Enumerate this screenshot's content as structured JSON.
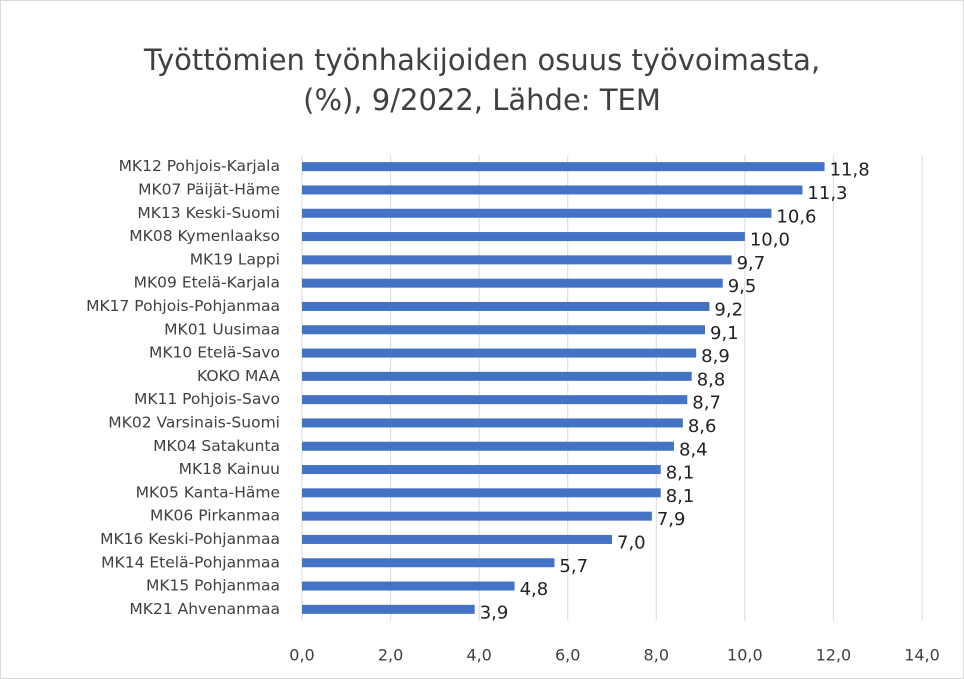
{
  "chart_data": {
    "type": "bar",
    "orientation": "horizontal",
    "title": [
      "Työttömien työnhakijoiden osuus työvoimasta,",
      "(%), 9/2022, Lähde: TEM"
    ],
    "categories": [
      "MK12 Pohjois-Karjala",
      "MK07 Päijät-Häme",
      "MK13 Keski-Suomi",
      "MK08 Kymenlaakso",
      "MK19 Lappi",
      "MK09 Etelä-Karjala",
      "MK17 Pohjois-Pohjanmaa",
      "MK01 Uusimaa",
      "MK10 Etelä-Savo",
      "KOKO MAA",
      "MK11 Pohjois-Savo",
      "MK02 Varsinais-Suomi",
      "MK04 Satakunta",
      "MK18 Kainuu",
      "MK05 Kanta-Häme",
      "MK06 Pirkanmaa",
      "MK16 Keski-Pohjanmaa",
      "MK14 Etelä-Pohjanmaa",
      "MK15 Pohjanmaa",
      "MK21 Ahvenanmaa"
    ],
    "values": [
      11.8,
      11.3,
      10.6,
      10,
      9.7,
      9.5,
      9.2,
      9.1,
      8.9,
      8.8,
      8.7,
      8.6,
      8.4,
      8.1,
      8.1,
      7.9,
      7,
      5.7,
      4.8,
      3.9
    ],
    "value_labels": [
      "11,8",
      "11,3",
      "10,6",
      "10,0",
      "9,7",
      "9,5",
      "9,2",
      "9,1",
      "8,9",
      "8,8",
      "8,7",
      "8,6",
      "8,4",
      "8,1",
      "8,1",
      "7,9",
      "7,0",
      "5,7",
      "4,8",
      "3,9"
    ],
    "color": "#4472c4",
    "xlim": [
      0,
      14
    ],
    "xticks": [
      {
        "value": 0,
        "label": "0,0"
      },
      {
        "value": 2,
        "label": "2,0"
      },
      {
        "value": 4,
        "label": "4,0"
      },
      {
        "value": 6,
        "label": "6,0"
      },
      {
        "value": 8,
        "label": "8,0"
      },
      {
        "value": 10,
        "label": "10,0"
      },
      {
        "value": 12,
        "label": "12,0"
      },
      {
        "value": 14,
        "label": "14,0"
      }
    ],
    "grid": true
  }
}
